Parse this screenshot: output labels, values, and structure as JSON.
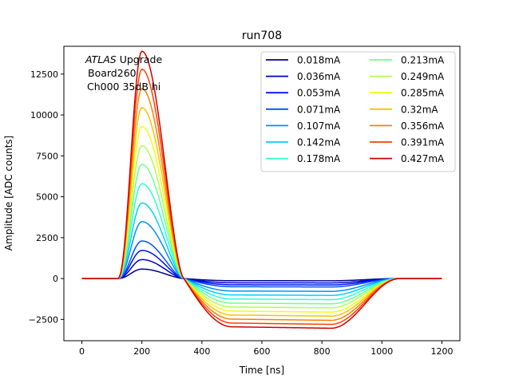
{
  "chart_data": {
    "type": "line",
    "title": "run708",
    "xlabel": "Time [ns]",
    "ylabel": "Amplitude [ADC counts]",
    "xlim": [
      -60,
      1260
    ],
    "ylim": [
      -3800,
      14200
    ],
    "xticks": [
      0,
      200,
      400,
      600,
      800,
      1000,
      1200
    ],
    "yticks": [
      -2500,
      0,
      2500,
      5000,
      7500,
      10000,
      12500
    ],
    "xtick_labels": [
      "0",
      "200",
      "400",
      "600",
      "800",
      "1000",
      "1200"
    ],
    "ytick_labels": [
      "−2500",
      "0",
      "2500",
      "5000",
      "7500",
      "10000",
      "12500"
    ],
    "annotation": {
      "line1_italic": "ATLAS",
      "line1_rest": " Upgrade",
      "line2": "Board260",
      "line3": "Ch000 35dB hi"
    },
    "legend_position": "top-right",
    "legend_columns": 2,
    "pulse_shape": {
      "baseline": 0,
      "rise_start": 120,
      "peak_time": 200,
      "zero_crossing": 340,
      "undershoot_plateau_start": 500,
      "undershoot_plateau_end": 830,
      "recovery_end": 1060,
      "end_time": 1200
    },
    "series": [
      {
        "name": "0.018mA",
        "color": "#00008f",
        "peak": 580,
        "undershoot": -130
      },
      {
        "name": "0.036mA",
        "color": "#0000cc",
        "peak": 1160,
        "undershoot": -260
      },
      {
        "name": "0.053mA",
        "color": "#0010ff",
        "peak": 1720,
        "undershoot": -380
      },
      {
        "name": "0.071mA",
        "color": "#0050ff",
        "peak": 2300,
        "undershoot": -500
      },
      {
        "name": "0.107mA",
        "color": "#0090ff",
        "peak": 3480,
        "undershoot": -760
      },
      {
        "name": "0.142mA",
        "color": "#00d0ff",
        "peak": 4620,
        "undershoot": -1000
      },
      {
        "name": "0.178mA",
        "color": "#30ffcf",
        "peak": 5800,
        "undershoot": -1250
      },
      {
        "name": "0.213mA",
        "color": "#70ff8f",
        "peak": 6980,
        "undershoot": -1500
      },
      {
        "name": "0.249mA",
        "color": "#afff50",
        "peak": 8120,
        "undershoot": -1740
      },
      {
        "name": "0.285mA",
        "color": "#efff10",
        "peak": 9300,
        "undershoot": -1990
      },
      {
        "name": "0.32mA",
        "color": "#ffc000",
        "peak": 10450,
        "undershoot": -2230
      },
      {
        "name": "0.356mA",
        "color": "#ff8000",
        "peak": 11620,
        "undershoot": -2480
      },
      {
        "name": "0.391mA",
        "color": "#ff4000",
        "peak": 12800,
        "undershoot": -2720
      },
      {
        "name": "0.427mA",
        "color": "#d00000",
        "peak": 13900,
        "undershoot": -2950
      }
    ]
  }
}
